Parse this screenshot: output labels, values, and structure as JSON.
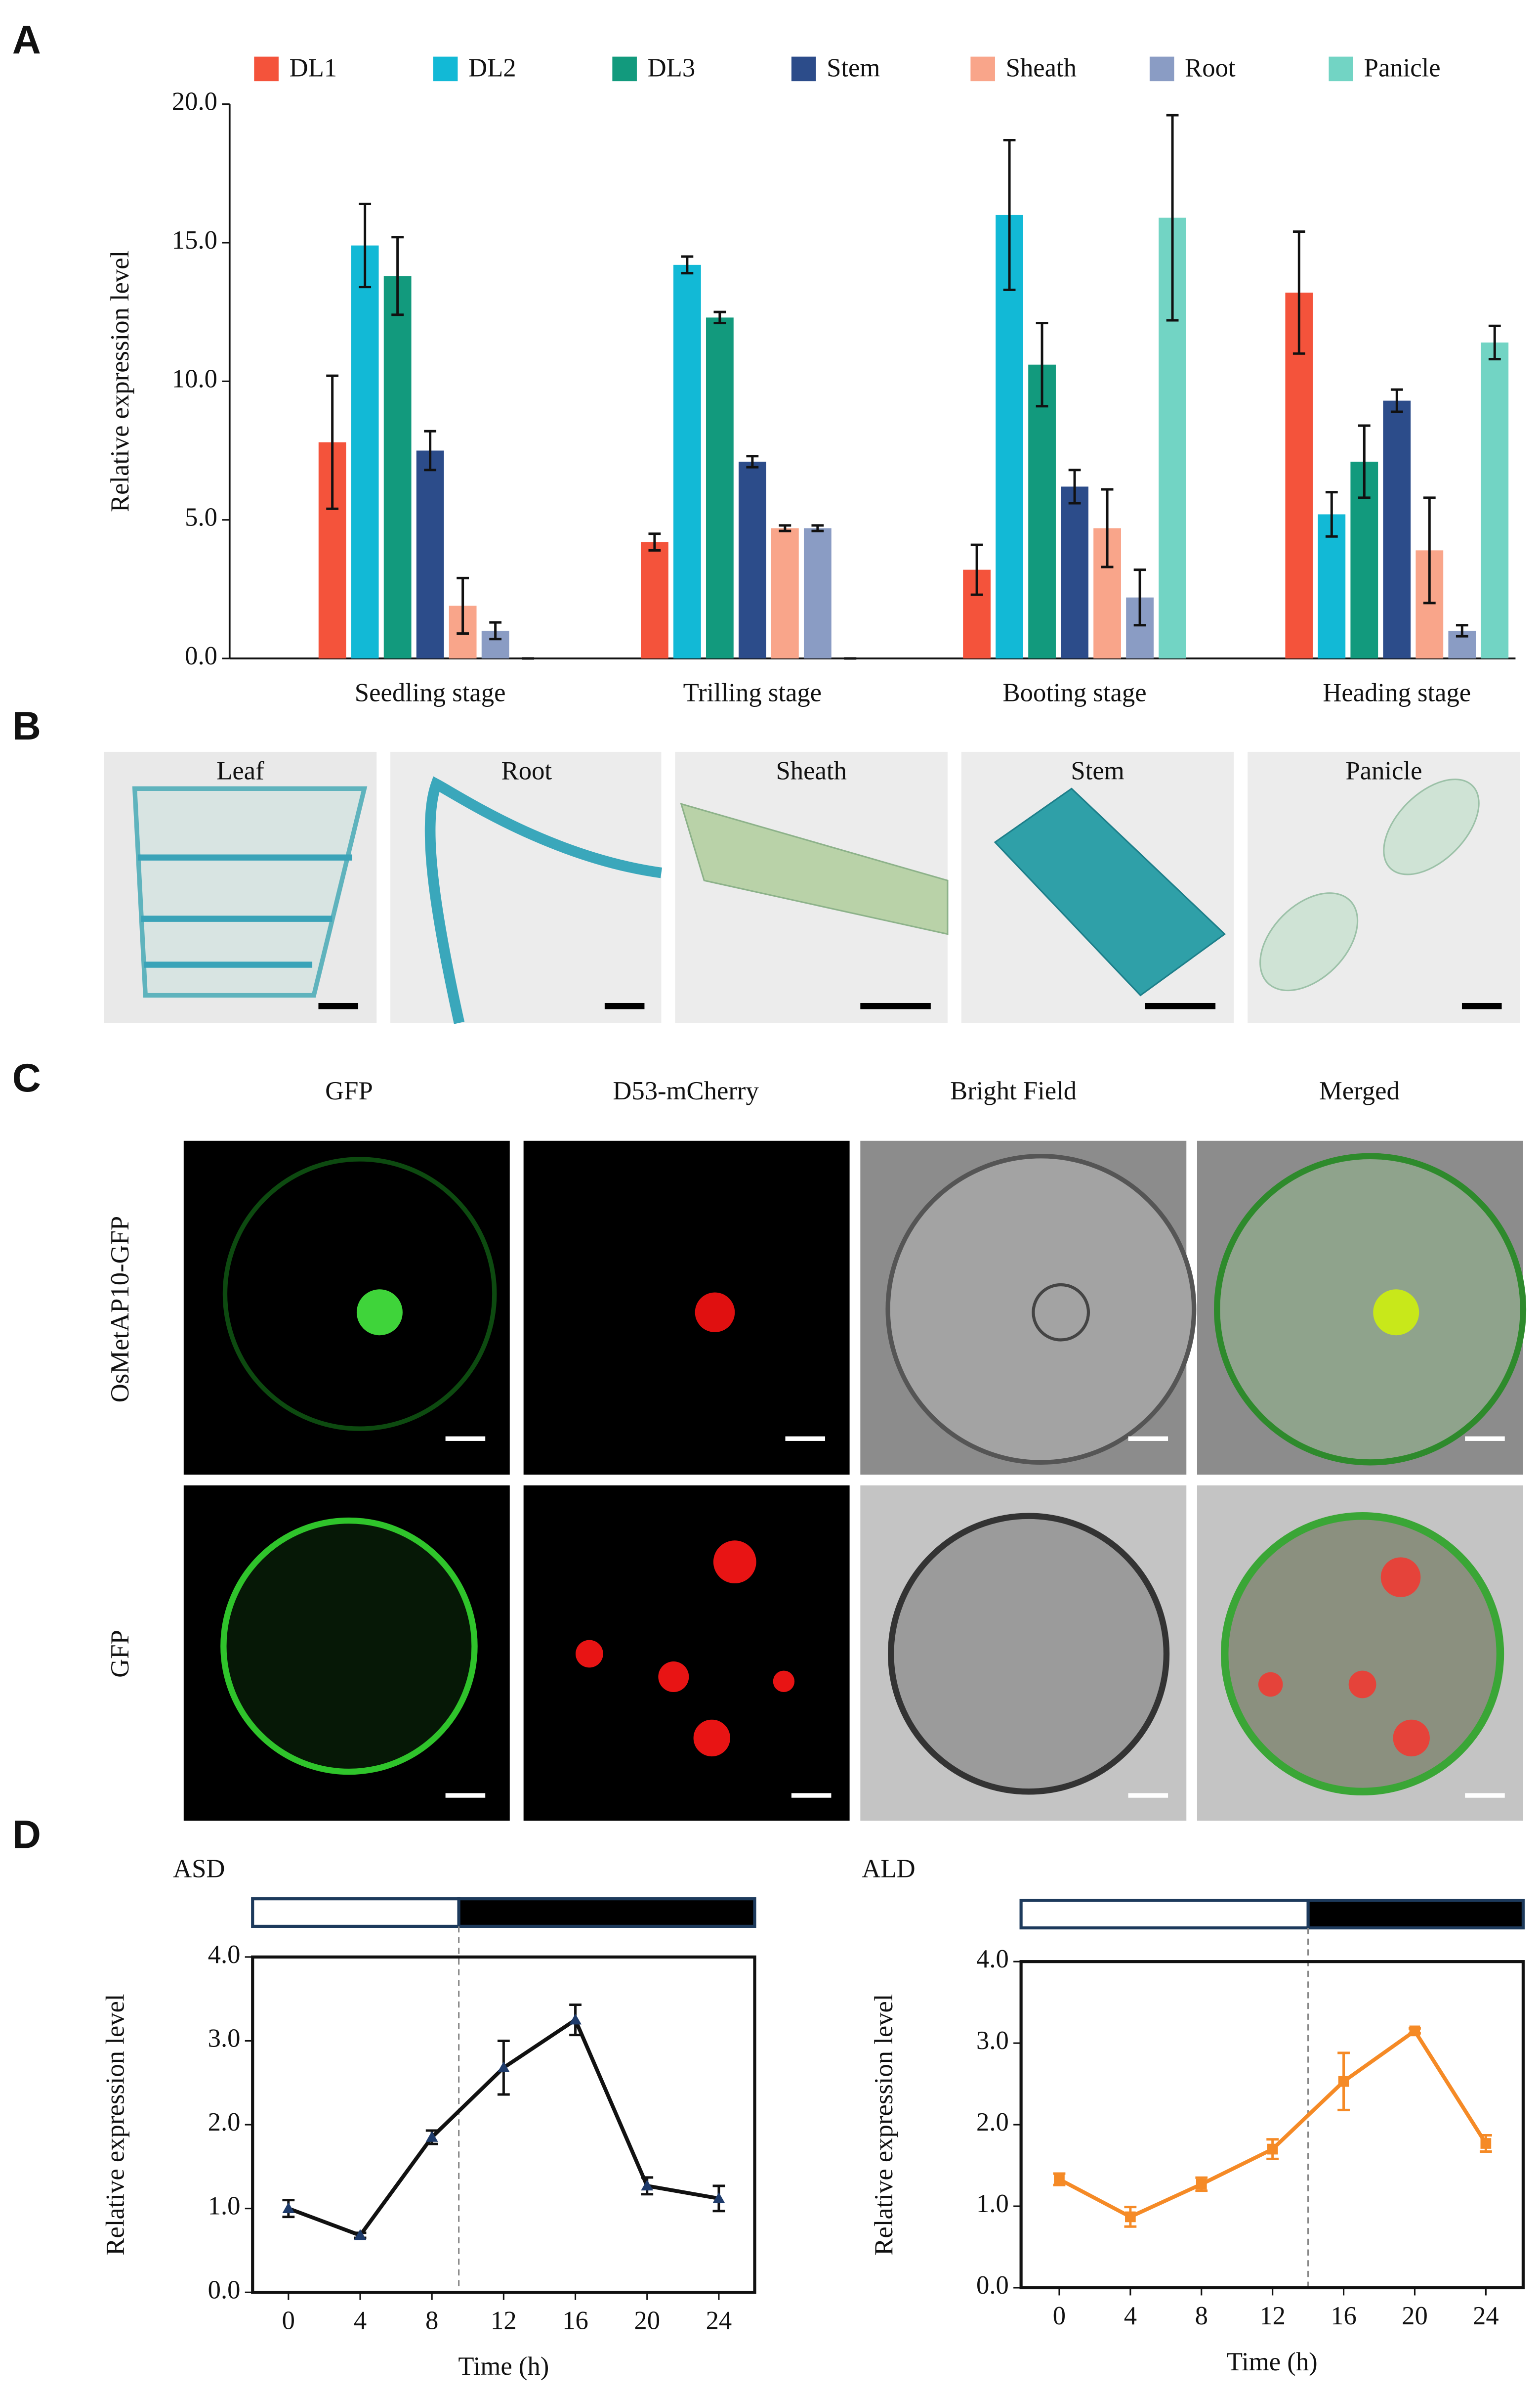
{
  "figure": {
    "panel_labels": [
      "A",
      "B",
      "C",
      "D"
    ]
  },
  "panel_b": {
    "labels": [
      "Leaf",
      "Root",
      "Sheath",
      "Stem",
      "Panicle"
    ]
  },
  "panel_c": {
    "columns": [
      "GFP",
      "D53-mCherry",
      "Bright Field",
      "Merged"
    ],
    "rows": [
      "OsMetAP10-GFP",
      "GFP"
    ]
  },
  "chart_data": [
    {
      "type": "bar",
      "y_label": "Relative expression level",
      "categories": [
        "Seedling stage",
        "Trilling stage",
        "Booting stage",
        "Heading stage"
      ],
      "series": [
        {
          "name": "DL1",
          "color": "#f4533b",
          "values": [
            7.8,
            4.2,
            3.2,
            13.2
          ],
          "errors": [
            2.4,
            0.3,
            0.9,
            2.2
          ]
        },
        {
          "name": "DL2",
          "color": "#12b9d6",
          "values": [
            14.9,
            14.2,
            16.0,
            5.2
          ],
          "errors": [
            1.5,
            0.3,
            2.7,
            0.8
          ]
        },
        {
          "name": "DL3",
          "color": "#129a7d",
          "values": [
            13.8,
            12.3,
            10.6,
            7.1
          ],
          "errors": [
            1.4,
            0.2,
            1.5,
            1.3
          ]
        },
        {
          "name": "Stem",
          "color": "#2c4c8a",
          "values": [
            7.5,
            7.1,
            6.2,
            9.3
          ],
          "errors": [
            0.7,
            0.2,
            0.6,
            0.4
          ]
        },
        {
          "name": "Sheath",
          "color": "#f9a58a",
          "values": [
            1.9,
            4.7,
            4.7,
            3.9
          ],
          "errors": [
            1.0,
            0.1,
            1.4,
            1.9
          ]
        },
        {
          "name": "Root",
          "color": "#8a9cc4",
          "values": [
            1.0,
            4.7,
            2.2,
            1.0
          ],
          "errors": [
            0.3,
            0.1,
            1.0,
            0.2
          ]
        },
        {
          "name": "Panicle",
          "color": "#72d4c4",
          "values": [
            0,
            0,
            15.9,
            11.4
          ],
          "errors": [
            0,
            0,
            3.7,
            0.6
          ]
        }
      ],
      "ylim": [
        0,
        20
      ],
      "yticks": [
        {
          "value": 0,
          "label": "0.0"
        },
        {
          "value": 5,
          "label": "5.0"
        },
        {
          "value": 10,
          "label": "10.0"
        },
        {
          "value": 15,
          "label": "15.0"
        },
        {
          "value": 20,
          "label": "20.0"
        }
      ]
    },
    {
      "type": "line",
      "title": "ASD",
      "x_label": "Time (h)",
      "y_label": "Relative expression level",
      "x": [
        0,
        4,
        8,
        12,
        16,
        20,
        24
      ],
      "series": [
        {
          "color": "#111111",
          "marker": "triangle",
          "values": [
            1.0,
            0.68,
            1.85,
            2.68,
            3.25,
            1.27,
            1.12
          ],
          "errors": [
            0.1,
            0.03,
            0.08,
            0.32,
            0.18,
            0.1,
            0.15
          ]
        }
      ],
      "xlim": [
        -2,
        26
      ],
      "xticks": [
        0,
        4,
        8,
        12,
        16,
        20,
        24
      ],
      "light_dark_boundary": 9.5,
      "ylim": [
        0,
        4
      ],
      "yticks": [
        {
          "value": 0,
          "label": "0.0"
        },
        {
          "value": 1,
          "label": "1.0"
        },
        {
          "value": 2,
          "label": "2.0"
        },
        {
          "value": 3,
          "label": "3.0"
        },
        {
          "value": 4,
          "label": "4.0"
        }
      ]
    },
    {
      "type": "line",
      "title": "ALD",
      "x_label": "Time (h)",
      "y_label": "Relative expression level",
      "x": [
        0,
        4,
        8,
        12,
        16,
        20,
        24
      ],
      "series": [
        {
          "color": "#f58a26",
          "marker": "square",
          "values": [
            1.33,
            0.87,
            1.27,
            1.7,
            2.53,
            3.15,
            1.77
          ],
          "errors": [
            0.07,
            0.12,
            0.08,
            0.12,
            0.35,
            0.03,
            0.1
          ]
        }
      ],
      "xlim": [
        -2.15,
        26.1
      ],
      "xticks": [
        0,
        4,
        8,
        12,
        16,
        20,
        24
      ],
      "light_dark_boundary": 14,
      "ylim": [
        0,
        4
      ],
      "yticks": [
        {
          "value": 0,
          "label": "0.0"
        },
        {
          "value": 1,
          "label": "1.0"
        },
        {
          "value": 2,
          "label": "2.0"
        },
        {
          "value": 3,
          "label": "3.0"
        },
        {
          "value": 4,
          "label": "4.0"
        }
      ]
    }
  ]
}
